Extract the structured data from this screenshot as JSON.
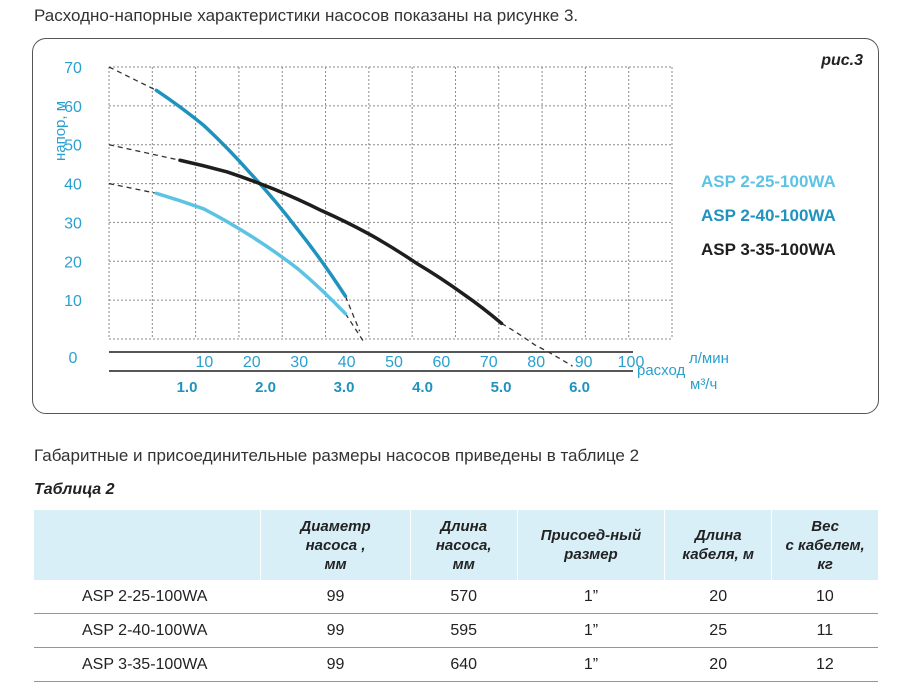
{
  "intro_text": "Расходно-напорные характеристики насосов показаны на рисунке 3.",
  "figure_label": "рис.3",
  "chart_data": {
    "type": "line",
    "ylabel": "напор, м",
    "xlabel_primary": "расход",
    "x_unit_primary": "л/мин",
    "x_unit_secondary": "м³/ч",
    "ylim": [
      0,
      70
    ],
    "xlim": [
      0,
      100
    ],
    "y_ticks": [
      "0",
      "10",
      "20",
      "30",
      "40",
      "50",
      "60",
      "70"
    ],
    "x_ticks_primary": [
      "10",
      "20",
      "30",
      "40",
      "50",
      "60",
      "70",
      "80",
      "90",
      "100"
    ],
    "x_ticks_secondary": [
      "1.0",
      "2.0",
      "3.0",
      "4.0",
      "5.0",
      "6.0"
    ],
    "grid": true,
    "legend_position": "right",
    "series": [
      {
        "name": "ASP 2-25-100WA",
        "color": "#5cc3e4",
        "points": [
          [
            10,
            37.5
          ],
          [
            20,
            33.5
          ],
          [
            30,
            26.5
          ],
          [
            40,
            18
          ],
          [
            50,
            6.5
          ]
        ],
        "extension_before": [
          [
            0,
            40
          ],
          [
            10,
            37.5
          ]
        ],
        "extension_after": [
          [
            50,
            6.5
          ],
          [
            54,
            -1
          ]
        ]
      },
      {
        "name": "ASP 2-40-100WA",
        "color": "#1f93be",
        "points": [
          [
            10,
            64
          ],
          [
            20,
            55
          ],
          [
            30,
            42.5
          ],
          [
            40,
            28
          ],
          [
            50,
            11
          ]
        ],
        "extension_before": [
          [
            0,
            70
          ],
          [
            10,
            64
          ]
        ],
        "extension_after": [
          [
            50,
            11
          ],
          [
            53,
            2
          ]
        ]
      },
      {
        "name": "ASP 3-35-100WA",
        "color": "#1e1e1e",
        "points": [
          [
            15,
            46
          ],
          [
            25,
            43
          ],
          [
            35,
            38.5
          ],
          [
            45,
            33
          ],
          [
            55,
            27
          ],
          [
            65,
            19.5
          ],
          [
            75,
            11.5
          ],
          [
            83,
            4
          ]
        ],
        "extension_before": [
          [
            0,
            50
          ],
          [
            15,
            46
          ]
        ],
        "extension_after": [
          [
            83,
            4
          ],
          [
            90,
            -1.5
          ],
          [
            98,
            -7
          ]
        ]
      }
    ]
  },
  "intro2_text": "Габаритные и присоединительные размеры насосов приведены в таблице 2",
  "table_title": "Таблица 2",
  "table": {
    "headers": [
      "",
      "Диаметр насоса , мм",
      "Длина насоса, мм",
      "Присоед-ный размер",
      "Длина кабеля, м",
      "Вес с кабелем, кг"
    ],
    "header_lines": [
      [
        ""
      ],
      [
        "Диаметр",
        "насоса ,",
        "мм"
      ],
      [
        "Длина",
        "насоса,",
        "мм"
      ],
      [
        "Присоед-ный",
        "размер"
      ],
      [
        "Длина",
        "кабеля, м"
      ],
      [
        "Вес",
        "с кабелем,",
        "кг"
      ]
    ],
    "rows": [
      [
        "ASP 2-25-100WA",
        "99",
        "570",
        "1”",
        "20",
        "10"
      ],
      [
        "ASP 2-40-100WA",
        "99",
        "595",
        "1”",
        "25",
        "11"
      ],
      [
        "ASP 3-35-100WA",
        "99",
        "640",
        "1”",
        "20",
        "12"
      ]
    ]
  }
}
